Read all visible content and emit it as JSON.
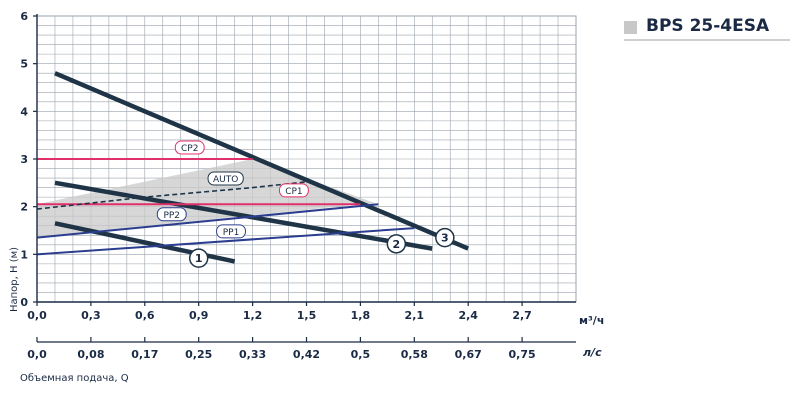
{
  "model": {
    "title": "BPS 25-4ESA",
    "swatch_color": "#c8c8c8"
  },
  "chart_data": {
    "type": "line",
    "ylabel": "Напор, H (м)",
    "xlabel": "Объемная подача, Q",
    "x_unit": "м³/ч",
    "x2_unit": "л/с",
    "xlim": [
      0,
      3
    ],
    "ylim": [
      0,
      6
    ],
    "x_ticks": [
      "0,0",
      "0,3",
      "0,6",
      "0,9",
      "1,2",
      "1,5",
      "1,8",
      "2,1",
      "2,4",
      "2,7"
    ],
    "x2_ticks": [
      "0,0",
      "0,08",
      "0,17",
      "0,25",
      "0,33",
      "0,42",
      "0,5",
      "0,58",
      "0,67",
      "0,75"
    ],
    "y_ticks": [
      "0",
      "1",
      "2",
      "3",
      "4",
      "5",
      "6"
    ],
    "grid": true,
    "colors": {
      "grid": "#9aa3ad",
      "speed_curves": "#1f3547",
      "pp_lines": "#2b3d8f",
      "cp_lines": "#e0306a",
      "auto_line": "#1f3547",
      "region_fill": "#c9c9c9"
    },
    "region": [
      [
        0,
        2.05
      ],
      [
        1.2,
        3.0
      ],
      [
        1.9,
        2.05
      ],
      [
        1.8,
        2.05
      ],
      [
        0,
        1.35
      ]
    ],
    "series": [
      {
        "name": "1",
        "style": "speed",
        "points": [
          [
            0.1,
            1.65
          ],
          [
            1.1,
            0.85
          ]
        ],
        "label_at": [
          0.9,
          0.92
        ]
      },
      {
        "name": "2",
        "style": "speed",
        "points": [
          [
            0.1,
            2.5
          ],
          [
            2.2,
            1.12
          ]
        ],
        "label_at": [
          2.0,
          1.22
        ]
      },
      {
        "name": "3",
        "style": "speed",
        "points": [
          [
            0.1,
            4.8
          ],
          [
            2.4,
            1.12
          ]
        ],
        "label_at": [
          2.27,
          1.35
        ]
      },
      {
        "name": "PP1",
        "style": "pp",
        "points": [
          [
            0,
            1.0
          ],
          [
            2.1,
            1.55
          ]
        ],
        "label_at": [
          1.08,
          1.47
        ]
      },
      {
        "name": "PP2",
        "style": "pp",
        "points": [
          [
            0,
            1.35
          ],
          [
            1.9,
            2.05
          ]
        ],
        "label_at": [
          0.75,
          1.83
        ]
      },
      {
        "name": "CP1",
        "style": "cp",
        "points": [
          [
            0,
            2.05
          ],
          [
            1.8,
            2.05
          ]
        ],
        "label_at": [
          1.43,
          2.33
        ]
      },
      {
        "name": "CP2",
        "style": "cp",
        "points": [
          [
            0,
            3.0
          ],
          [
            1.2,
            3.0
          ]
        ],
        "label_at": [
          0.85,
          3.23
        ]
      },
      {
        "name": "AUTO",
        "style": "auto",
        "points": [
          [
            0,
            1.95
          ],
          [
            0.6,
            2.2
          ],
          [
            1.2,
            2.4
          ],
          [
            1.5,
            2.52
          ]
        ],
        "label_at": [
          1.05,
          2.58
        ]
      }
    ]
  }
}
